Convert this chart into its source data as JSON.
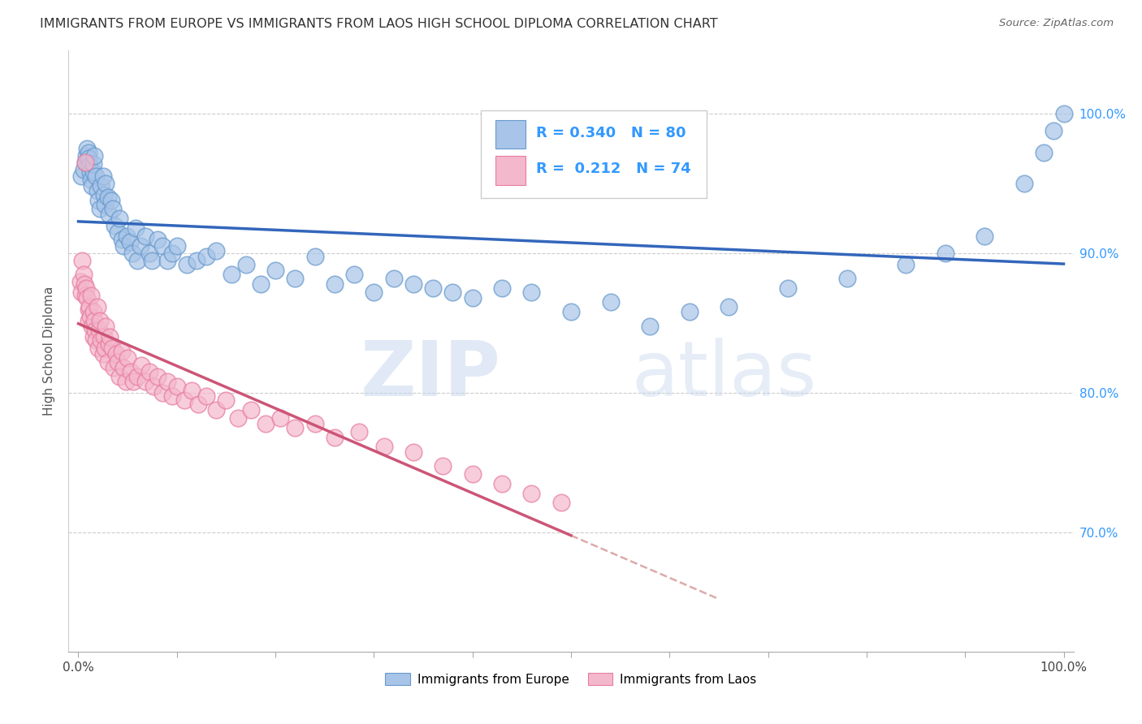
{
  "title": "IMMIGRANTS FROM EUROPE VS IMMIGRANTS FROM LAOS HIGH SCHOOL DIPLOMA CORRELATION CHART",
  "source": "Source: ZipAtlas.com",
  "ylabel": "High School Diploma",
  "legend_europe": "Immigrants from Europe",
  "legend_laos": "Immigrants from Laos",
  "R_europe": 0.34,
  "N_europe": 80,
  "R_laos": 0.212,
  "N_laos": 74,
  "europe_color": "#a8c4e8",
  "europe_edge_color": "#6699cc",
  "laos_color": "#f4b8cc",
  "laos_edge_color": "#e87ca0",
  "europe_line_color": "#3366bb",
  "laos_line_color": "#cc5577",
  "dashed_line_color": "#ddaaaa",
  "background_color": "#ffffff",
  "grid_color": "#cccccc",
  "ytick_labels": [
    "70.0%",
    "80.0%",
    "90.0%",
    "100.0%"
  ],
  "ytick_values": [
    0.7,
    0.8,
    0.9,
    1.0
  ],
  "xlim": [
    -0.01,
    1.01
  ],
  "ylim": [
    0.615,
    1.045
  ],
  "europe_x": [
    0.003,
    0.005,
    0.007,
    0.008,
    0.009,
    0.01,
    0.01,
    0.011,
    0.012,
    0.013,
    0.014,
    0.015,
    0.015,
    0.016,
    0.018,
    0.019,
    0.02,
    0.022,
    0.023,
    0.025,
    0.026,
    0.027,
    0.028,
    0.03,
    0.031,
    0.033,
    0.035,
    0.037,
    0.04,
    0.042,
    0.044,
    0.046,
    0.049,
    0.052,
    0.055,
    0.058,
    0.06,
    0.063,
    0.068,
    0.072,
    0.075,
    0.08,
    0.085,
    0.09,
    0.095,
    0.1,
    0.11,
    0.12,
    0.13,
    0.14,
    0.155,
    0.17,
    0.185,
    0.2,
    0.22,
    0.24,
    0.26,
    0.28,
    0.3,
    0.32,
    0.34,
    0.36,
    0.38,
    0.4,
    0.43,
    0.46,
    0.5,
    0.54,
    0.58,
    0.62,
    0.66,
    0.72,
    0.78,
    0.84,
    0.88,
    0.92,
    0.96,
    0.98,
    0.99,
    1.0
  ],
  "europe_y": [
    0.955,
    0.96,
    0.965,
    0.97,
    0.975,
    0.972,
    0.968,
    0.963,
    0.958,
    0.953,
    0.948,
    0.958,
    0.964,
    0.97,
    0.955,
    0.945,
    0.938,
    0.932,
    0.948,
    0.955,
    0.942,
    0.935,
    0.95,
    0.94,
    0.928,
    0.938,
    0.932,
    0.92,
    0.915,
    0.925,
    0.91,
    0.905,
    0.912,
    0.908,
    0.9,
    0.918,
    0.895,
    0.905,
    0.912,
    0.9,
    0.895,
    0.91,
    0.905,
    0.895,
    0.9,
    0.905,
    0.892,
    0.895,
    0.898,
    0.902,
    0.885,
    0.892,
    0.878,
    0.888,
    0.882,
    0.898,
    0.878,
    0.885,
    0.872,
    0.882,
    0.878,
    0.875,
    0.872,
    0.868,
    0.875,
    0.872,
    0.858,
    0.865,
    0.848,
    0.858,
    0.862,
    0.875,
    0.882,
    0.892,
    0.9,
    0.912,
    0.95,
    0.972,
    0.988,
    1.0
  ],
  "laos_x": [
    0.002,
    0.003,
    0.004,
    0.005,
    0.006,
    0.007,
    0.007,
    0.008,
    0.009,
    0.01,
    0.01,
    0.011,
    0.012,
    0.013,
    0.014,
    0.015,
    0.015,
    0.016,
    0.017,
    0.018,
    0.019,
    0.02,
    0.021,
    0.022,
    0.023,
    0.025,
    0.026,
    0.027,
    0.028,
    0.03,
    0.031,
    0.032,
    0.034,
    0.036,
    0.038,
    0.04,
    0.042,
    0.044,
    0.046,
    0.048,
    0.05,
    0.053,
    0.056,
    0.06,
    0.064,
    0.068,
    0.072,
    0.076,
    0.08,
    0.085,
    0.09,
    0.095,
    0.1,
    0.108,
    0.115,
    0.122,
    0.13,
    0.14,
    0.15,
    0.162,
    0.175,
    0.19,
    0.205,
    0.22,
    0.24,
    0.26,
    0.285,
    0.31,
    0.34,
    0.37,
    0.4,
    0.43,
    0.46,
    0.49
  ],
  "laos_y": [
    0.88,
    0.872,
    0.895,
    0.885,
    0.878,
    0.965,
    0.87,
    0.875,
    0.868,
    0.86,
    0.852,
    0.862,
    0.855,
    0.87,
    0.848,
    0.858,
    0.84,
    0.852,
    0.845,
    0.838,
    0.862,
    0.832,
    0.845,
    0.852,
    0.838,
    0.828,
    0.84,
    0.832,
    0.848,
    0.822,
    0.835,
    0.84,
    0.832,
    0.818,
    0.828,
    0.822,
    0.812,
    0.83,
    0.818,
    0.808,
    0.825,
    0.815,
    0.808,
    0.812,
    0.82,
    0.808,
    0.815,
    0.805,
    0.812,
    0.8,
    0.808,
    0.798,
    0.805,
    0.795,
    0.802,
    0.792,
    0.798,
    0.788,
    0.795,
    0.782,
    0.788,
    0.778,
    0.782,
    0.775,
    0.778,
    0.768,
    0.772,
    0.762,
    0.758,
    0.748,
    0.742,
    0.735,
    0.728,
    0.722
  ],
  "watermark_zip": "ZIP",
  "watermark_atlas": "atlas"
}
